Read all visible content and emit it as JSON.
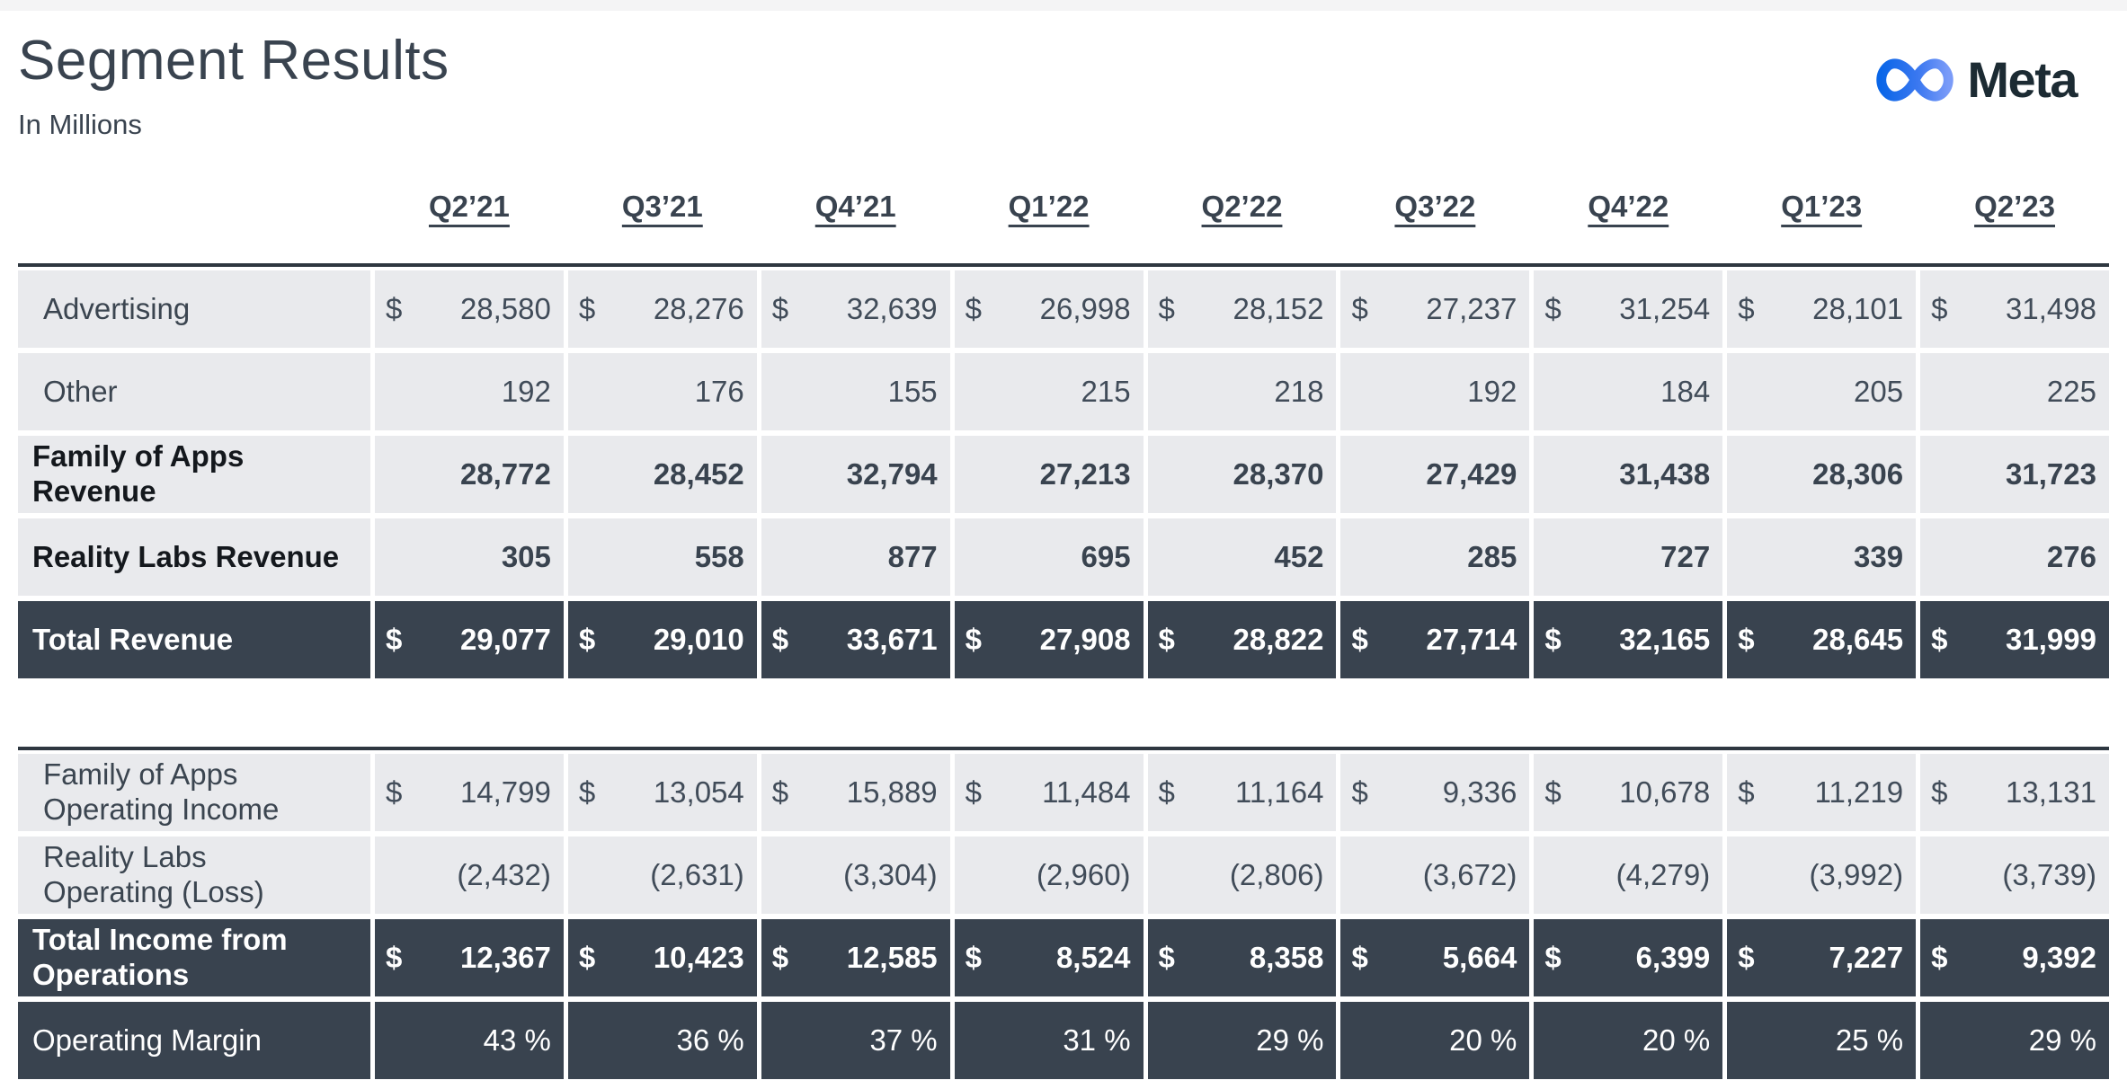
{
  "page": {
    "title": "Segment Results",
    "subtitle": "In Millions",
    "brand": "Meta"
  },
  "colors": {
    "dark_row_bg": "#39434F",
    "light_row_bg": "#E9EAED",
    "heading_text": "#39434F",
    "bold_label_text": "#14181D",
    "total_text": "#FFFFFF",
    "logo_blue_start": "#0A66E8",
    "logo_blue_mid": "#3B78F0",
    "logo_blue_end": "#7A9BF8",
    "logo_wordmark": "#1C2B33"
  },
  "columns": [
    "Q2’21",
    "Q3’21",
    "Q4’21",
    "Q1’22",
    "Q2’22",
    "Q3’22",
    "Q4’22",
    "Q1’23",
    "Q2’23"
  ],
  "tables": [
    {
      "name": "revenue",
      "rows": [
        {
          "label": "Advertising",
          "style": "regular",
          "dollar": true,
          "values": [
            "28,580",
            "28,276",
            "32,639",
            "26,998",
            "28,152",
            "27,237",
            "31,254",
            "28,101",
            "31,498"
          ]
        },
        {
          "label": "Other",
          "style": "regular",
          "dollar": false,
          "values": [
            "192",
            "176",
            "155",
            "215",
            "218",
            "192",
            "184",
            "205",
            "225"
          ]
        },
        {
          "label": "Family of Apps\nRevenue",
          "style": "bold",
          "dollar": false,
          "values": [
            "28,772",
            "28,452",
            "32,794",
            "27,213",
            "28,370",
            "27,429",
            "31,438",
            "28,306",
            "31,723"
          ]
        },
        {
          "label": "Reality Labs Revenue",
          "style": "bold",
          "dollar": false,
          "values": [
            "305",
            "558",
            "877",
            "695",
            "452",
            "285",
            "727",
            "339",
            "276"
          ]
        },
        {
          "label": "Total Revenue",
          "style": "total",
          "dollar": true,
          "values": [
            "29,077",
            "29,010",
            "33,671",
            "27,908",
            "28,822",
            "27,714",
            "32,165",
            "28,645",
            "31,999"
          ]
        }
      ]
    },
    {
      "name": "operating-income",
      "rows": [
        {
          "label": "Family of Apps\nOperating Income",
          "style": "regular",
          "dollar": true,
          "values": [
            "14,799",
            "13,054",
            "15,889",
            "11,484",
            "11,164",
            "9,336",
            "10,678",
            "11,219",
            "13,131"
          ]
        },
        {
          "label": "Reality Labs\nOperating (Loss)",
          "style": "regular",
          "dollar": false,
          "values": [
            "(2,432)",
            "(2,631)",
            "(3,304)",
            "(2,960)",
            "(2,806)",
            "(3,672)",
            "(4,279)",
            "(3,992)",
            "(3,739)"
          ]
        },
        {
          "label": "Total Income from\nOperations",
          "style": "total",
          "dollar": true,
          "values": [
            "12,367",
            "10,423",
            "12,585",
            "8,524",
            "8,358",
            "5,664",
            "6,399",
            "7,227",
            "9,392"
          ]
        },
        {
          "label": "Operating Margin",
          "style": "dark",
          "dollar": false,
          "values": [
            "43 %",
            "36 %",
            "37 %",
            "31 %",
            "29 %",
            "20 %",
            "20 %",
            "25 %",
            "29 %"
          ]
        }
      ]
    }
  ]
}
